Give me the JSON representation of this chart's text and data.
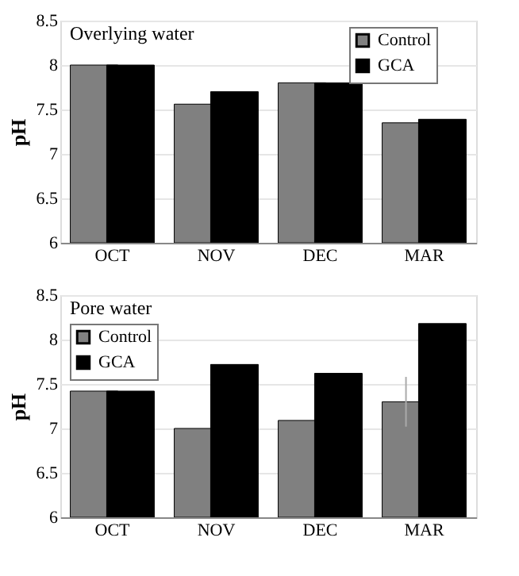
{
  "chart_data": [
    {
      "type": "bar",
      "title": "Overlying water",
      "ylabel": "pH",
      "categories": [
        "OCT",
        "NOV",
        "DEC",
        "MAR"
      ],
      "series": [
        {
          "name": "Control",
          "color": "#808080",
          "values": [
            8.0,
            7.56,
            7.8,
            7.35
          ]
        },
        {
          "name": "GCA",
          "color": "#000000",
          "values": [
            8.0,
            7.7,
            7.8,
            7.39
          ]
        }
      ],
      "ylim": [
        6,
        8.5
      ],
      "yticks": [
        6,
        6.5,
        7,
        7.5,
        8,
        8.5
      ],
      "grid": "y",
      "legend": "top right"
    },
    {
      "type": "bar",
      "title": "Pore water",
      "ylabel": "pH",
      "categories": [
        "OCT",
        "NOV",
        "DEC",
        "MAR"
      ],
      "series": [
        {
          "name": "Control",
          "color": "#808080",
          "values": [
            7.42,
            7.0,
            7.09,
            7.3
          ],
          "errors": [
            null,
            null,
            null,
            0.28
          ]
        },
        {
          "name": "GCA",
          "color": "#000000",
          "values": [
            7.42,
            7.72,
            7.62,
            8.18
          ]
        }
      ],
      "ylim": [
        6,
        8.5
      ],
      "yticks": [
        6,
        6.5,
        7,
        7.5,
        8,
        8.5
      ],
      "grid": "y",
      "legend": "top left"
    }
  ]
}
